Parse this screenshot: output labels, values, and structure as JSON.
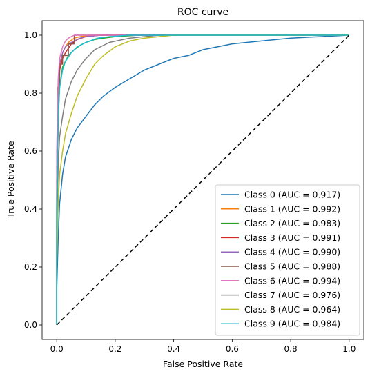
{
  "chart_data": {
    "type": "line",
    "title": "ROC curve",
    "xlabel": "False Positive Rate",
    "ylabel": "True Positive Rate",
    "xlim": [
      -0.05,
      1.05
    ],
    "ylim": [
      -0.05,
      1.05
    ],
    "xticks": [
      "0.0",
      "0.2",
      "0.4",
      "0.6",
      "0.8",
      "1.0"
    ],
    "yticks": [
      "0.0",
      "0.2",
      "0.4",
      "0.6",
      "0.8",
      "1.0"
    ],
    "legend_position": "lower-right",
    "grid": false,
    "diagonal": {
      "x": [
        0,
        1
      ],
      "y": [
        0,
        1
      ],
      "color": "#000000",
      "style": "dashed"
    },
    "series": [
      {
        "name": "Class 0 (AUC = 0.917)",
        "color": "#1f77b4",
        "x": [
          0,
          0,
          0.005,
          0.01,
          0.02,
          0.03,
          0.05,
          0.07,
          0.1,
          0.13,
          0.16,
          0.2,
          0.25,
          0.3,
          0.35,
          0.4,
          0.45,
          0.5,
          0.6,
          0.7,
          0.8,
          0.9,
          1.0
        ],
        "y": [
          0,
          0.12,
          0.3,
          0.42,
          0.52,
          0.58,
          0.64,
          0.68,
          0.72,
          0.76,
          0.79,
          0.82,
          0.85,
          0.88,
          0.9,
          0.92,
          0.93,
          0.95,
          0.97,
          0.98,
          0.99,
          0.995,
          1.0
        ]
      },
      {
        "name": "Class 1 (AUC = 0.992)",
        "color": "#ff7f0e",
        "x": [
          0,
          0,
          0.005,
          0.01,
          0.02,
          0.03,
          0.04,
          0.06,
          0.08,
          0.12,
          1.0
        ],
        "y": [
          0,
          0.4,
          0.75,
          0.88,
          0.94,
          0.96,
          0.975,
          0.99,
          0.995,
          1.0,
          1.0
        ]
      },
      {
        "name": "Class 2 (AUC = 0.983)",
        "color": "#2ca02c",
        "x": [
          0,
          0,
          0.005,
          0.01,
          0.02,
          0.04,
          0.06,
          0.08,
          0.1,
          0.13,
          0.16,
          0.2,
          0.28,
          1.0
        ],
        "y": [
          0,
          0.35,
          0.7,
          0.82,
          0.89,
          0.93,
          0.95,
          0.965,
          0.975,
          0.985,
          0.99,
          0.995,
          1.0,
          1.0
        ]
      },
      {
        "name": "Class 3 (AUC = 0.991)",
        "color": "#d62728",
        "x": [
          0,
          0,
          0.005,
          0.01,
          0.02,
          0.03,
          0.05,
          0.07,
          0.1,
          0.15,
          1.0
        ],
        "y": [
          0,
          0.5,
          0.8,
          0.88,
          0.92,
          0.94,
          0.97,
          0.985,
          0.995,
          1.0,
          1.0
        ]
      },
      {
        "name": "Class 4 (AUC = 0.990)",
        "color": "#9467bd",
        "x": [
          0,
          0,
          0.005,
          0.01,
          0.02,
          0.03,
          0.05,
          0.08,
          0.1,
          0.15,
          1.0
        ],
        "y": [
          0,
          0.45,
          0.82,
          0.9,
          0.94,
          0.96,
          0.975,
          0.99,
          0.995,
          1.0,
          1.0
        ]
      },
      {
        "name": "Class 5 (AUC = 0.988)",
        "color": "#8c564b",
        "x": [
          0,
          0,
          0.003,
          0.003,
          0.01,
          0.01,
          0.02,
          0.02,
          0.04,
          0.04,
          0.06,
          0.06,
          1.0
        ],
        "y": [
          0,
          0.55,
          0.55,
          0.82,
          0.82,
          0.9,
          0.9,
          0.93,
          0.93,
          0.97,
          0.97,
          1.0,
          1.0
        ]
      },
      {
        "name": "Class 6 (AUC = 0.994)",
        "color": "#e377c2",
        "x": [
          0,
          0,
          0.005,
          0.01,
          0.02,
          0.03,
          0.04,
          0.05,
          0.06,
          1.0
        ],
        "y": [
          0,
          0.6,
          0.85,
          0.92,
          0.96,
          0.98,
          0.99,
          0.995,
          1.0,
          1.0
        ]
      },
      {
        "name": "Class 7 (AUC = 0.976)",
        "color": "#7f7f7f",
        "x": [
          0,
          0,
          0.005,
          0.01,
          0.02,
          0.03,
          0.05,
          0.07,
          0.1,
          0.13,
          0.18,
          0.25,
          0.35,
          1.0
        ],
        "y": [
          0,
          0.3,
          0.55,
          0.65,
          0.72,
          0.78,
          0.84,
          0.88,
          0.92,
          0.95,
          0.975,
          0.99,
          1.0,
          1.0
        ]
      },
      {
        "name": "Class 8 (AUC = 0.964)",
        "color": "#bcbd22",
        "x": [
          0,
          0,
          0.005,
          0.01,
          0.02,
          0.03,
          0.05,
          0.07,
          0.1,
          0.13,
          0.16,
          0.2,
          0.25,
          0.3,
          0.4,
          1.0
        ],
        "y": [
          0,
          0.2,
          0.42,
          0.52,
          0.6,
          0.66,
          0.73,
          0.79,
          0.85,
          0.9,
          0.93,
          0.96,
          0.98,
          0.99,
          1.0,
          1.0
        ]
      },
      {
        "name": "Class 9 (AUC = 0.984)",
        "color": "#17becf",
        "x": [
          0,
          0,
          0.005,
          0.01,
          0.02,
          0.03,
          0.05,
          0.07,
          0.1,
          0.14,
          0.18,
          0.25,
          1.0
        ],
        "y": [
          0,
          0.4,
          0.72,
          0.82,
          0.88,
          0.91,
          0.94,
          0.96,
          0.975,
          0.99,
          0.995,
          1.0,
          1.0
        ]
      }
    ]
  }
}
